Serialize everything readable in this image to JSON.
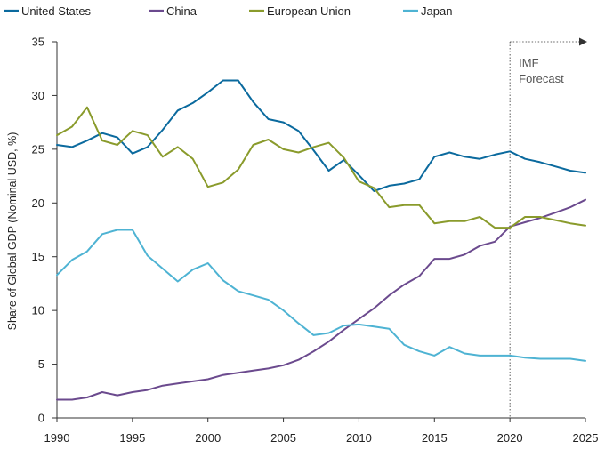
{
  "chart_data": {
    "type": "line",
    "title": "",
    "xlabel": "",
    "ylabel": "Share of Global GDP (Nominal USD, %)",
    "xlim": [
      1990,
      2025
    ],
    "ylim": [
      0,
      35
    ],
    "x_ticks": [
      "1990",
      "1995",
      "2000",
      "2005",
      "2010",
      "2015",
      "2020",
      "2025"
    ],
    "y_ticks": [
      "0",
      "5",
      "10",
      "15",
      "20",
      "25",
      "30",
      "35"
    ],
    "legend_position": "top",
    "grid": false,
    "annotation": {
      "year": 2020,
      "line1": "IMF",
      "line2": "Forecast"
    },
    "x": [
      1990,
      1991,
      1992,
      1993,
      1994,
      1995,
      1996,
      1997,
      1998,
      1999,
      2000,
      2001,
      2002,
      2003,
      2004,
      2005,
      2006,
      2007,
      2008,
      2009,
      2010,
      2011,
      2012,
      2013,
      2014,
      2015,
      2016,
      2017,
      2018,
      2019,
      2020,
      2021,
      2022,
      2023,
      2024,
      2025
    ],
    "series": [
      {
        "name": "United States",
        "color": "#0b6a9e",
        "values": [
          25.4,
          25.2,
          25.8,
          26.5,
          26.1,
          24.6,
          25.2,
          26.8,
          28.6,
          29.3,
          30.3,
          31.4,
          31.4,
          29.4,
          27.8,
          27.5,
          26.7,
          24.9,
          23.0,
          24.0,
          22.6,
          21.1,
          21.6,
          21.8,
          22.2,
          24.3,
          24.7,
          24.3,
          24.1,
          24.5,
          24.8,
          24.1,
          23.8,
          23.4,
          23.0,
          22.8
        ]
      },
      {
        "name": "China",
        "color": "#6b4a8e",
        "values": [
          1.7,
          1.7,
          1.9,
          2.4,
          2.1,
          2.4,
          2.6,
          3.0,
          3.2,
          3.4,
          3.6,
          4.0,
          4.2,
          4.4,
          4.6,
          4.9,
          5.4,
          6.2,
          7.1,
          8.2,
          9.2,
          10.2,
          11.4,
          12.4,
          13.2,
          14.8,
          14.8,
          15.2,
          16.0,
          16.4,
          17.8,
          18.2,
          18.6,
          19.1,
          19.6,
          20.3
        ]
      },
      {
        "name": "European Union",
        "color": "#8a9b2c",
        "values": [
          26.3,
          27.1,
          28.9,
          25.8,
          25.4,
          26.7,
          26.3,
          24.3,
          25.2,
          24.1,
          21.5,
          21.9,
          23.1,
          25.4,
          25.9,
          25.0,
          24.7,
          25.2,
          25.6,
          24.2,
          22.0,
          21.4,
          19.6,
          19.8,
          19.8,
          18.1,
          18.3,
          18.3,
          18.7,
          17.7,
          17.7,
          18.7,
          18.7,
          18.4,
          18.1,
          17.9
        ]
      },
      {
        "name": "Japan",
        "color": "#4eb3d3",
        "values": [
          13.3,
          14.7,
          15.5,
          17.1,
          17.5,
          17.5,
          15.1,
          13.9,
          12.7,
          13.8,
          14.4,
          12.8,
          11.8,
          11.4,
          11.0,
          10.0,
          8.8,
          7.7,
          7.9,
          8.6,
          8.7,
          8.5,
          8.3,
          6.8,
          6.2,
          5.8,
          6.6,
          6.0,
          5.8,
          5.8,
          5.8,
          5.6,
          5.5,
          5.5,
          5.5,
          5.3
        ]
      }
    ]
  }
}
